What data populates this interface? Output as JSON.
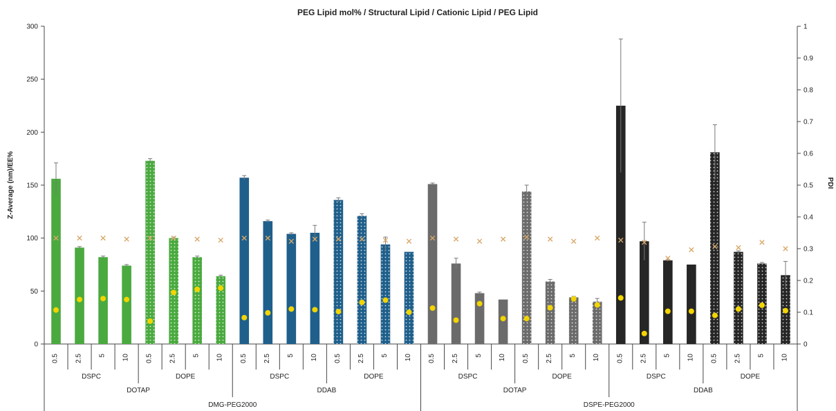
{
  "chart_data": {
    "type": "bar",
    "title": "PEG Lipid mol% / Structural Lipid / Cationic Lipid / PEG Lipid",
    "ylabel": "Z-Average (nm)/EE%",
    "y2label": "PDI",
    "ylim": [
      0,
      300
    ],
    "y2lim": [
      0,
      1
    ],
    "yticks": [
      "0",
      "50",
      "100",
      "150",
      "200",
      "250",
      "300"
    ],
    "y2ticks": [
      "0",
      "0.1",
      "0.2",
      "0.3",
      "0.4",
      "0.5",
      "0.6",
      "0.7",
      "0.8",
      "0.9",
      "1"
    ],
    "grid": false,
    "categories": [
      "0.5",
      "2.5",
      "5",
      "10",
      "0.5",
      "2.5",
      "5",
      "10",
      "0.5",
      "2.5",
      "5",
      "10",
      "0.5",
      "2.5",
      "5",
      "10",
      "0.5",
      "2.5",
      "5",
      "10",
      "0.5",
      "2.5",
      "5",
      "10",
      "0.5",
      "2.5",
      "5",
      "10",
      "0.5",
      "2.5",
      "5",
      "10"
    ],
    "structural_groups": [
      "DSPC",
      "DOPE",
      "DSPC",
      "DOPE",
      "DSPC",
      "DOPE",
      "DSPC",
      "DOPE"
    ],
    "cationic_groups": [
      "DOTAP",
      "DDAB",
      "DOTAP",
      "DDAB"
    ],
    "peg_groups": [
      "DMG-PEG2000",
      "DSPE-PEG2000"
    ],
    "colors": {
      "dotap_dmg": "#4aaa3f",
      "ddab_dmg": "#1f5f8b",
      "dotap_dspe": "#6b6b6b",
      "ddab_dspe": "#262626",
      "pdi_marker": "#f2d400",
      "ee_marker": "#d8a869",
      "error_bar": "#777777"
    },
    "series": [
      {
        "values": [
          156,
          91,
          82,
          74,
          173,
          100,
          82,
          64,
          157,
          116,
          104,
          105,
          136,
          121,
          94,
          87,
          151,
          76,
          48,
          42,
          144,
          59,
          44,
          40,
          225,
          97,
          79,
          75,
          181,
          87,
          76,
          65
        ],
        "errors": [
          15,
          1,
          1,
          1,
          2,
          1,
          1,
          1,
          2,
          1,
          1,
          7,
          2,
          2,
          7,
          0,
          1,
          5,
          1,
          0,
          6,
          2,
          1,
          3,
          63,
          18,
          1,
          0,
          26,
          1,
          1,
          13
        ]
      },
      {
        "values": [
          100,
          100,
          100,
          99,
          100,
          100,
          99,
          98,
          100,
          100,
          97,
          99,
          99,
          99,
          98,
          97,
          100,
          99,
          97,
          99,
          101,
          99,
          97,
          100,
          98,
          96,
          81,
          89,
          92,
          91,
          96,
          90
        ]
      },
      {
        "values": [
          0.107,
          0.14,
          0.143,
          0.14,
          0.072,
          0.162,
          0.172,
          0.176,
          0.083,
          0.098,
          0.11,
          0.108,
          0.102,
          0.131,
          0.138,
          0.1,
          0.113,
          0.075,
          0.127,
          0.08,
          0.08,
          0.114,
          0.142,
          0.123,
          0.145,
          0.033,
          0.103,
          0.103,
          0.09,
          0.11,
          0.122,
          0.105
        ]
      }
    ]
  }
}
